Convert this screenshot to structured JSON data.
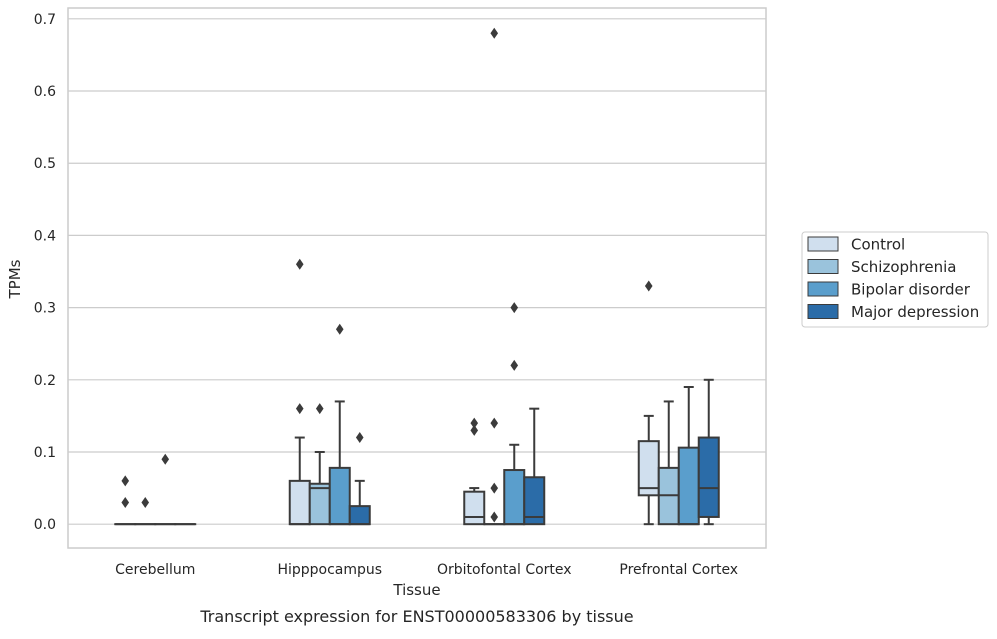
{
  "chart_data": {
    "type": "box",
    "xlabel": "Tissue",
    "ylabel": "TPMs",
    "caption": "Transcript expression for ENST00000583306 by tissue",
    "ylim": [
      -0.033,
      0.715
    ],
    "yticks": [
      0.0,
      0.1,
      0.2,
      0.3,
      0.4,
      0.5,
      0.6,
      0.7
    ],
    "ytick_labels": [
      "0.0",
      "0.1",
      "0.2",
      "0.3",
      "0.4",
      "0.5",
      "0.6",
      "0.7"
    ],
    "grid": "horizontal",
    "legend_position": "right",
    "categories": [
      "Cerebellum",
      "Hipppocampus",
      "Orbitofontal Cortex",
      "Prefrontal Cortex"
    ],
    "series": [
      {
        "name": "Control",
        "color": "#d0dfee",
        "boxes": [
          {
            "q1": 0.0,
            "median": 0.0,
            "q3": 0.0,
            "whisker_low": 0.0,
            "whisker_high": 0.0,
            "outliers": [
              0.03,
              0.06
            ]
          },
          {
            "q1": 0.0,
            "median": 0.0,
            "q3": 0.06,
            "whisker_low": 0.0,
            "whisker_high": 0.12,
            "outliers": [
              0.16,
              0.36
            ]
          },
          {
            "q1": 0.0,
            "median": 0.01,
            "q3": 0.045,
            "whisker_low": 0.0,
            "whisker_high": 0.05,
            "outliers": [
              0.13,
              0.14
            ]
          },
          {
            "q1": 0.04,
            "median": 0.05,
            "q3": 0.115,
            "whisker_low": 0.0,
            "whisker_high": 0.15,
            "outliers": [
              0.33
            ]
          }
        ]
      },
      {
        "name": "Schizophrenia",
        "color": "#9ac3dc",
        "boxes": [
          {
            "q1": 0.0,
            "median": 0.0,
            "q3": 0.0,
            "whisker_low": 0.0,
            "whisker_high": 0.0,
            "outliers": [
              0.03
            ]
          },
          {
            "q1": 0.0,
            "median": 0.05,
            "q3": 0.056,
            "whisker_low": 0.0,
            "whisker_high": 0.1,
            "outliers": [
              0.16
            ]
          },
          {
            "q1": 0.0,
            "median": 0.0,
            "q3": 0.0,
            "whisker_low": 0.0,
            "whisker_high": 0.0,
            "outliers": [
              0.01,
              0.05,
              0.14,
              0.68
            ]
          },
          {
            "q1": 0.0,
            "median": 0.04,
            "q3": 0.078,
            "whisker_low": 0.0,
            "whisker_high": 0.17,
            "outliers": []
          }
        ]
      },
      {
        "name": "Bipolar disorder",
        "color": "#5a9ecc",
        "boxes": [
          {
            "q1": 0.0,
            "median": 0.0,
            "q3": 0.0,
            "whisker_low": 0.0,
            "whisker_high": 0.0,
            "outliers": [
              0.09
            ]
          },
          {
            "q1": 0.0,
            "median": 0.0,
            "q3": 0.078,
            "whisker_low": 0.0,
            "whisker_high": 0.17,
            "outliers": [
              0.27
            ]
          },
          {
            "q1": 0.0,
            "median": 0.0,
            "q3": 0.075,
            "whisker_low": 0.0,
            "whisker_high": 0.11,
            "outliers": [
              0.22,
              0.3
            ]
          },
          {
            "q1": 0.0,
            "median": 0.0,
            "q3": 0.106,
            "whisker_low": 0.0,
            "whisker_high": 0.19,
            "outliers": []
          }
        ]
      },
      {
        "name": "Major depression",
        "color": "#2b6ca8",
        "boxes": [
          {
            "q1": 0.0,
            "median": 0.0,
            "q3": 0.0,
            "whisker_low": 0.0,
            "whisker_high": 0.0,
            "outliers": []
          },
          {
            "q1": 0.0,
            "median": 0.0,
            "q3": 0.025,
            "whisker_low": 0.0,
            "whisker_high": 0.06,
            "outliers": [
              0.12
            ]
          },
          {
            "q1": 0.0,
            "median": 0.01,
            "q3": 0.065,
            "whisker_low": 0.0,
            "whisker_high": 0.16,
            "outliers": []
          },
          {
            "q1": 0.01,
            "median": 0.05,
            "q3": 0.12,
            "whisker_low": 0.0,
            "whisker_high": 0.2,
            "outliers": []
          }
        ]
      }
    ]
  }
}
